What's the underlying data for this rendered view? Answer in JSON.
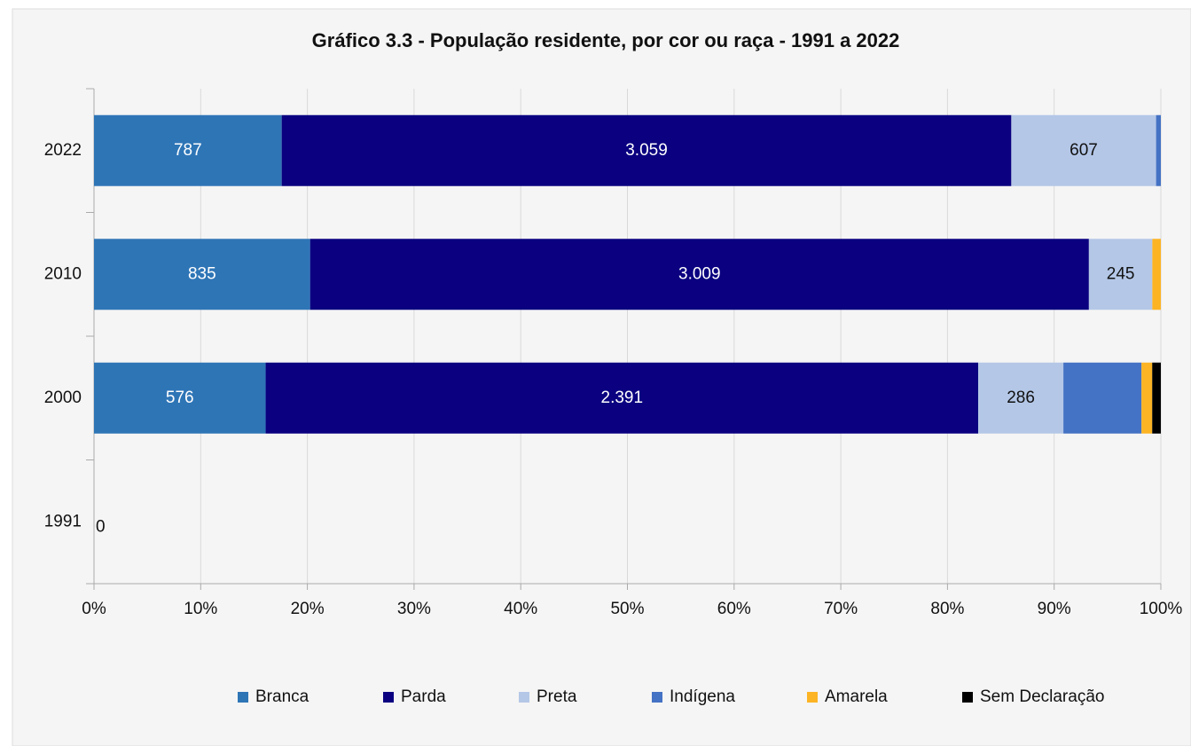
{
  "chart_data": {
    "type": "bar",
    "orientation": "horizontal",
    "stacked": "percent",
    "title": "Gráfico 3.3 - População residente, por cor ou raça - 1991 a 2022",
    "categories": [
      "2022",
      "2010",
      "2000",
      "1991"
    ],
    "series": [
      {
        "name": "Branca",
        "color": "#2e75b6",
        "values": [
          787,
          835,
          576,
          0
        ],
        "value_labels": [
          "787",
          "835",
          "576",
          "0"
        ]
      },
      {
        "name": "Parda",
        "color": "#0a0080",
        "values": [
          3059,
          3009,
          2391,
          0
        ],
        "value_labels": [
          "3.059",
          "3.009",
          "2.391",
          null
        ]
      },
      {
        "name": "Preta",
        "color": "#b4c7e7",
        "values": [
          607,
          245,
          286,
          0
        ],
        "value_labels": [
          "607",
          "245",
          "286",
          null
        ]
      },
      {
        "name": "Indígena",
        "color": "#4472c4",
        "values": [
          20,
          0,
          262,
          0
        ]
      },
      {
        "name": "Amarela",
        "color": "#fcb424",
        "values": [
          0,
          33,
          36,
          0
        ]
      },
      {
        "name": "Sem Declaração",
        "color": "#000000",
        "values": [
          0,
          0,
          29,
          0
        ]
      }
    ],
    "xlim": [
      0,
      100
    ],
    "xticks": [
      {
        "value": 0,
        "label": "0%"
      },
      {
        "value": 10,
        "label": "10%"
      },
      {
        "value": 20,
        "label": "20%"
      },
      {
        "value": 30,
        "label": "30%"
      },
      {
        "value": 40,
        "label": "40%"
      },
      {
        "value": 50,
        "label": "50%"
      },
      {
        "value": 60,
        "label": "60%"
      },
      {
        "value": 70,
        "label": "70%"
      },
      {
        "value": 80,
        "label": "80%"
      },
      {
        "value": 90,
        "label": "90%"
      },
      {
        "value": 100,
        "label": "100%"
      }
    ],
    "grid": true,
    "legend": "bottom"
  }
}
